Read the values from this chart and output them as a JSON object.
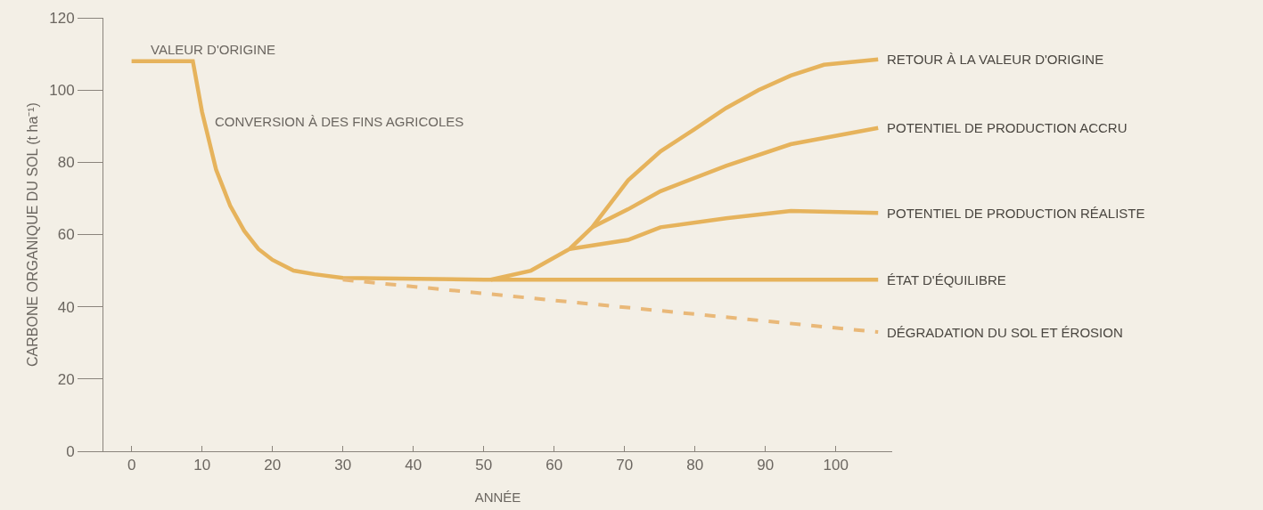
{
  "chart_data": {
    "type": "line",
    "xlabel": "ANNÉE",
    "ylabel": "CARBONE ORGANIQUE DU SOL (t ha⁻¹)",
    "xlim": [
      -4,
      108
    ],
    "xticks": [
      0,
      10,
      20,
      30,
      40,
      50,
      60,
      70,
      80,
      90,
      100
    ],
    "ylim": [
      0,
      120
    ],
    "yticks": [
      0,
      20,
      40,
      60,
      80,
      100,
      120
    ],
    "grid": false,
    "legend": false,
    "marker": "none",
    "annotations": [
      "VALEUR D'ORIGINE",
      "CONVERSION À DES FINS AGRICOLES"
    ],
    "series": [
      {
        "name": "ÉTAT D'ÉQUILIBRE",
        "color": "#e6b35c",
        "line_style": "solid",
        "x": [
          0,
          8.7,
          10,
          12,
          14,
          16,
          18,
          20,
          23,
          26,
          30,
          50,
          80,
          106
        ],
        "values": [
          108,
          108,
          94,
          78,
          68,
          61,
          56,
          53,
          50,
          49,
          48,
          47.5,
          47.5,
          47.5
        ]
      },
      {
        "name": "DÉGRADATION DU SOL ET ÉROSION",
        "color": "#e9b878",
        "line_style": "dashed",
        "x": [
          30,
          106
        ],
        "values": [
          47.5,
          33
        ]
      },
      {
        "name": "RETOUR À LA VALEUR D'ORIGINE",
        "color": "#e6b35c",
        "line_style": "solid",
        "x": [
          51,
          56.7,
          62.2,
          65.4,
          70.5,
          75.1,
          79.8,
          84.4,
          89,
          93.6,
          98.3,
          106
        ],
        "values": [
          47.5,
          50,
          56,
          62,
          75,
          83,
          89,
          95,
          100,
          104,
          107,
          108.5
        ]
      },
      {
        "name": "POTENTIEL DE PRODUCTION ACCRU",
        "color": "#e6b35c",
        "line_style": "solid",
        "x": [
          65.4,
          70.5,
          75.1,
          84.4,
          93.6,
          106
        ],
        "values": [
          62,
          67,
          72,
          79,
          85,
          89.5
        ]
      },
      {
        "name": "POTENTIEL DE PRODUCTION RÉALISTE",
        "color": "#e6b35c",
        "line_style": "solid",
        "x": [
          62.2,
          70.5,
          75.1,
          84.4,
          93.6,
          106
        ],
        "values": [
          56,
          58.5,
          62,
          64.5,
          66.5,
          66
        ]
      }
    ]
  }
}
